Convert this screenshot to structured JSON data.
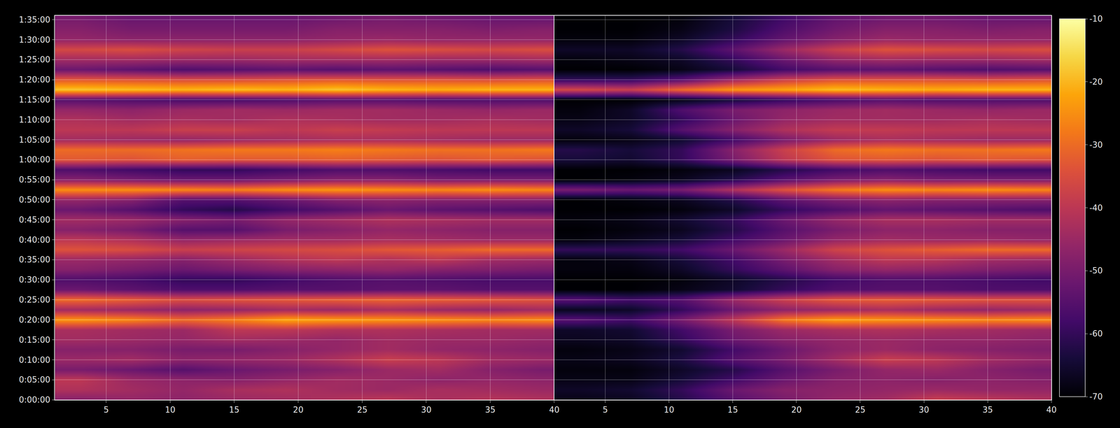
{
  "chart_data": {
    "type": "heatmap",
    "grid": true,
    "ylim": [
      0,
      96
    ],
    "yticks": [
      {
        "value": 0,
        "label": "0:00:00"
      },
      {
        "value": 5,
        "label": "0:05:00"
      },
      {
        "value": 10,
        "label": "0:10:00"
      },
      {
        "value": 15,
        "label": "0:15:00"
      },
      {
        "value": 20,
        "label": "0:20:00"
      },
      {
        "value": 25,
        "label": "0:25:00"
      },
      {
        "value": 30,
        "label": "0:30:00"
      },
      {
        "value": 35,
        "label": "0:35:00"
      },
      {
        "value": 40,
        "label": "0:40:00"
      },
      {
        "value": 45,
        "label": "0:45:00"
      },
      {
        "value": 50,
        "label": "0:50:00"
      },
      {
        "value": 55,
        "label": "0:55:00"
      },
      {
        "value": 60,
        "label": "1:00:00"
      },
      {
        "value": 65,
        "label": "1:05:00"
      },
      {
        "value": 70,
        "label": "1:10:00"
      },
      {
        "value": 75,
        "label": "1:15:00"
      },
      {
        "value": 80,
        "label": "1:20:00"
      },
      {
        "value": 85,
        "label": "1:25:00"
      },
      {
        "value": 90,
        "label": "1:30:00"
      },
      {
        "value": 95,
        "label": "1:35:00"
      }
    ],
    "y": [
      0,
      2.5,
      5,
      7.5,
      10,
      12.5,
      15,
      17.5,
      20,
      22.5,
      25,
      27.5,
      30,
      32.5,
      35,
      37.5,
      40,
      42.5,
      45,
      47.5,
      50,
      52.5,
      55,
      57.5,
      60,
      62.5,
      65,
      67.5,
      70,
      72.5,
      75,
      77.5,
      80,
      82.5,
      85,
      87.5,
      90,
      92.5,
      95
    ],
    "colorbar": {
      "range": [
        -70,
        -10
      ],
      "ticks": [
        -70,
        -60,
        -50,
        -40,
        -30,
        -20,
        -10
      ]
    },
    "panels": [
      {
        "x": [
          3,
          7,
          11,
          15,
          19,
          23,
          27,
          31,
          35,
          39
        ],
        "xlim": [
          1,
          40
        ],
        "xticks": [
          5,
          10,
          15,
          20,
          25,
          30,
          35,
          40
        ],
        "z": [
          [
            -48,
            -46,
            -47,
            -45,
            -44,
            -42,
            -40,
            -43,
            -41,
            -42
          ],
          [
            -42,
            -44,
            -46,
            -43,
            -42,
            -44,
            -45,
            -43,
            -44,
            -45
          ],
          [
            -40,
            -45,
            -47,
            -48,
            -46,
            -44,
            -45,
            -47,
            -46,
            -47
          ],
          [
            -50,
            -52,
            -55,
            -52,
            -50,
            -48,
            -45,
            -44,
            -48,
            -50
          ],
          [
            -45,
            -44,
            -47,
            -46,
            -45,
            -42,
            -38,
            -40,
            -44,
            -45
          ],
          [
            -48,
            -48,
            -50,
            -50,
            -48,
            -46,
            -44,
            -46,
            -47,
            -48
          ],
          [
            -44,
            -45,
            -46,
            -44,
            -45,
            -46,
            -44,
            -45,
            -45,
            -46
          ],
          [
            -43,
            -44,
            -45,
            -40,
            -40,
            -42,
            -42,
            -43,
            -44,
            -44
          ],
          [
            -24,
            -26,
            -30,
            -27,
            -22,
            -23,
            -24,
            -25,
            -26,
            -25
          ],
          [
            -44,
            -45,
            -47,
            -46,
            -44,
            -45,
            -43,
            -45,
            -46,
            -44
          ],
          [
            -30,
            -32,
            -35,
            -34,
            -33,
            -32,
            -31,
            -32,
            -33,
            -34
          ],
          [
            -52,
            -54,
            -56,
            -56,
            -55,
            -55,
            -54,
            -54,
            -55,
            -55
          ],
          [
            -56,
            -57,
            -60,
            -60,
            -58,
            -56,
            -55,
            -56,
            -57,
            -57
          ],
          [
            -48,
            -50,
            -52,
            -50,
            -48,
            -47,
            -46,
            -48,
            -49,
            -50
          ],
          [
            -45,
            -46,
            -48,
            -45,
            -42,
            -40,
            -42,
            -40,
            -44,
            -45
          ],
          [
            -34,
            -35,
            -38,
            -37,
            -36,
            -35,
            -33,
            -32,
            -30,
            -30
          ],
          [
            -40,
            -42,
            -46,
            -45,
            -44,
            -44,
            -43,
            -44,
            -45,
            -45
          ],
          [
            -48,
            -50,
            -55,
            -55,
            -50,
            -48,
            -46,
            -47,
            -48,
            -48
          ],
          [
            -44,
            -45,
            -48,
            -50,
            -46,
            -44,
            -42,
            -43,
            -44,
            -44
          ],
          [
            -52,
            -55,
            -60,
            -62,
            -58,
            -55,
            -52,
            -54,
            -55,
            -56
          ],
          [
            -46,
            -48,
            -55,
            -55,
            -52,
            -48,
            -47,
            -48,
            -48,
            -48
          ],
          [
            -25,
            -25,
            -26,
            -27,
            -25,
            -24,
            -25,
            -26,
            -25,
            -26
          ],
          [
            -48,
            -50,
            -52,
            -52,
            -50,
            -48,
            -48,
            -50,
            -50,
            -50
          ],
          [
            -56,
            -58,
            -60,
            -60,
            -58,
            -56,
            -56,
            -57,
            -58,
            -58
          ],
          [
            -33,
            -34,
            -32,
            -33,
            -33,
            -32,
            -33,
            -34,
            -33,
            -34
          ],
          [
            -30,
            -30,
            -29,
            -28,
            -28,
            -27,
            -28,
            -29,
            -29,
            -28
          ],
          [
            -44,
            -45,
            -46,
            -45,
            -44,
            -43,
            -43,
            -44,
            -45,
            -45
          ],
          [
            -40,
            -40,
            -38,
            -38,
            -40,
            -38,
            -39,
            -40,
            -40,
            -40
          ],
          [
            -42,
            -44,
            -43,
            -44,
            -42,
            -43,
            -44,
            -44,
            -43,
            -44
          ],
          [
            -46,
            -47,
            -45,
            -44,
            -45,
            -44,
            -44,
            -45,
            -46,
            -45
          ],
          [
            -55,
            -56,
            -57,
            -57,
            -56,
            -55,
            -55,
            -56,
            -56,
            -56
          ],
          [
            -18,
            -19,
            -20,
            -19,
            -20,
            -18,
            -20,
            -21,
            -20,
            -20
          ],
          [
            -33,
            -34,
            -35,
            -35,
            -34,
            -33,
            -34,
            -34,
            -35,
            -34
          ],
          [
            -52,
            -54,
            -56,
            -55,
            -54,
            -55,
            -54,
            -55,
            -56,
            -55
          ],
          [
            -44,
            -44,
            -45,
            -45,
            -44,
            -44,
            -44,
            -45,
            -45,
            -44
          ],
          [
            -36,
            -35,
            -37,
            -38,
            -38,
            -36,
            -34,
            -35,
            -36,
            -35
          ],
          [
            -46,
            -47,
            -47,
            -47,
            -47,
            -46,
            -45,
            -46,
            -46,
            -46
          ],
          [
            -48,
            -50,
            -50,
            -50,
            -50,
            -48,
            -48,
            -48,
            -49,
            -48
          ],
          [
            -50,
            -52,
            -52,
            -52,
            -52,
            -51,
            -50,
            -51,
            -52,
            -52
          ]
        ]
      },
      {
        "x": [
          3,
          7,
          11,
          15,
          19,
          23,
          27,
          31,
          35,
          39
        ],
        "xlim": [
          1,
          40
        ],
        "xticks": [
          5,
          10,
          15,
          20,
          25,
          30,
          35,
          40
        ],
        "z": [
          [
            -68,
            -67,
            -62,
            -55,
            -50,
            -46,
            -44,
            -38,
            -40,
            -42
          ],
          [
            -66,
            -65,
            -60,
            -52,
            -48,
            -47,
            -46,
            -45,
            -46,
            -46
          ],
          [
            -68,
            -68,
            -64,
            -58,
            -52,
            -48,
            -47,
            -48,
            -47,
            -48
          ],
          [
            -69,
            -69,
            -66,
            -62,
            -55,
            -50,
            -46,
            -45,
            -48,
            -50
          ],
          [
            -68,
            -67,
            -63,
            -55,
            -50,
            -44,
            -38,
            -40,
            -44,
            -46
          ],
          [
            -69,
            -68,
            -65,
            -58,
            -52,
            -47,
            -45,
            -47,
            -48,
            -49
          ],
          [
            -67,
            -66,
            -60,
            -52,
            -48,
            -46,
            -45,
            -46,
            -46,
            -47
          ],
          [
            -66,
            -65,
            -58,
            -50,
            -45,
            -43,
            -42,
            -43,
            -44,
            -45
          ],
          [
            -55,
            -58,
            -50,
            -40,
            -28,
            -23,
            -24,
            -25,
            -26,
            -25
          ],
          [
            -67,
            -66,
            -60,
            -52,
            -47,
            -45,
            -43,
            -45,
            -46,
            -45
          ],
          [
            -55,
            -58,
            -55,
            -45,
            -38,
            -33,
            -32,
            -33,
            -34,
            -34
          ],
          [
            -70,
            -70,
            -68,
            -65,
            -60,
            -56,
            -55,
            -55,
            -56,
            -56
          ],
          [
            -70,
            -70,
            -69,
            -66,
            -62,
            -58,
            -56,
            -56,
            -57,
            -58
          ],
          [
            -69,
            -69,
            -66,
            -60,
            -54,
            -48,
            -46,
            -47,
            -49,
            -50
          ],
          [
            -69,
            -68,
            -64,
            -58,
            -50,
            -44,
            -40,
            -41,
            -44,
            -45
          ],
          [
            -60,
            -60,
            -58,
            -52,
            -45,
            -37,
            -34,
            -32,
            -30,
            -30
          ],
          [
            -69,
            -67,
            -64,
            -58,
            -52,
            -46,
            -44,
            -45,
            -45,
            -46
          ],
          [
            -70,
            -69,
            -67,
            -62,
            -55,
            -50,
            -47,
            -47,
            -48,
            -48
          ],
          [
            -69,
            -68,
            -65,
            -60,
            -52,
            -46,
            -43,
            -43,
            -44,
            -44
          ],
          [
            -70,
            -70,
            -69,
            -66,
            -60,
            -56,
            -53,
            -54,
            -55,
            -56
          ],
          [
            -70,
            -69,
            -67,
            -62,
            -54,
            -49,
            -47,
            -48,
            -48,
            -48
          ],
          [
            -50,
            -52,
            -50,
            -42,
            -34,
            -28,
            -25,
            -26,
            -25,
            -26
          ],
          [
            -70,
            -69,
            -67,
            -62,
            -55,
            -50,
            -48,
            -50,
            -50,
            -50
          ],
          [
            -70,
            -70,
            -69,
            -67,
            -62,
            -58,
            -56,
            -57,
            -58,
            -58
          ],
          [
            -64,
            -65,
            -60,
            -50,
            -40,
            -34,
            -33,
            -34,
            -33,
            -34
          ],
          [
            -62,
            -64,
            -60,
            -48,
            -38,
            -30,
            -28,
            -29,
            -29,
            -28
          ],
          [
            -69,
            -68,
            -65,
            -58,
            -50,
            -45,
            -43,
            -44,
            -45,
            -45
          ],
          [
            -66,
            -64,
            -55,
            -48,
            -42,
            -39,
            -39,
            -40,
            -40,
            -40
          ],
          [
            -68,
            -66,
            -60,
            -52,
            -46,
            -44,
            -44,
            -44,
            -43,
            -44
          ],
          [
            -69,
            -66,
            -56,
            -50,
            -47,
            -45,
            -44,
            -45,
            -46,
            -45
          ],
          [
            -70,
            -70,
            -68,
            -64,
            -60,
            -57,
            -55,
            -56,
            -56,
            -56
          ],
          [
            -36,
            -38,
            -30,
            -24,
            -22,
            -19,
            -20,
            -21,
            -20,
            -20
          ],
          [
            -60,
            -60,
            -55,
            -45,
            -38,
            -34,
            -34,
            -34,
            -35,
            -34
          ],
          [
            -70,
            -70,
            -68,
            -64,
            -58,
            -55,
            -54,
            -55,
            -56,
            -55
          ],
          [
            -69,
            -68,
            -66,
            -60,
            -52,
            -46,
            -44,
            -45,
            -45,
            -44
          ],
          [
            -66,
            -66,
            -62,
            -54,
            -45,
            -38,
            -34,
            -35,
            -36,
            -35
          ],
          [
            -69,
            -69,
            -66,
            -60,
            -53,
            -48,
            -45,
            -46,
            -46,
            -46
          ],
          [
            -70,
            -70,
            -68,
            -63,
            -56,
            -51,
            -48,
            -48,
            -49,
            -48
          ],
          [
            -70,
            -70,
            -69,
            -64,
            -58,
            -53,
            -51,
            -51,
            -52,
            -52
          ]
        ]
      }
    ]
  }
}
